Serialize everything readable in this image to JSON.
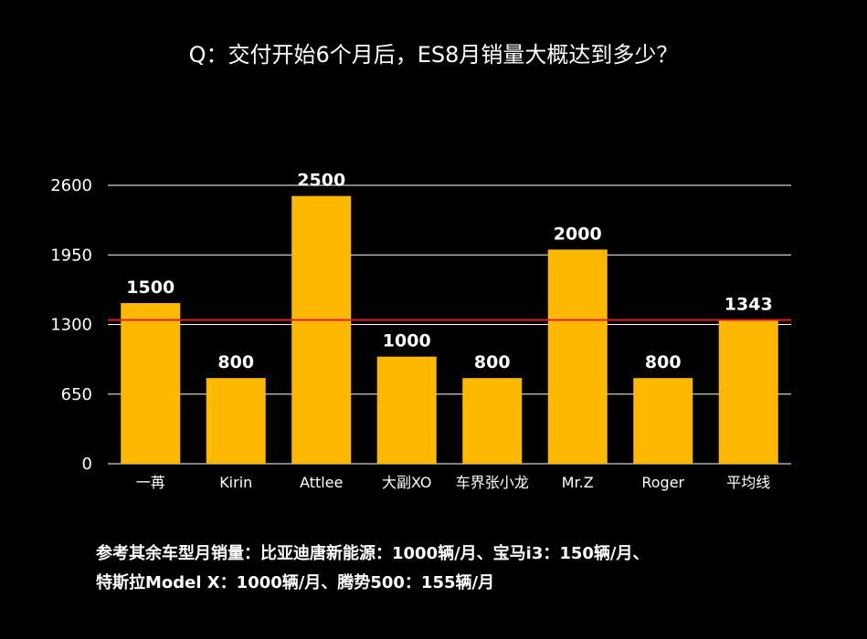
{
  "title": "Q：交付开始6个月后，ES8月销量大概达到多少？",
  "chart_data": {
    "type": "bar",
    "categories": [
      "一苒",
      "Kirin",
      "Attlee",
      "大副XO",
      "车界张小龙",
      "Mr.Z",
      "Roger",
      "平均线"
    ],
    "values": [
      1500,
      800,
      2500,
      1000,
      800,
      2000,
      800,
      1343
    ],
    "data_labels": [
      "1500",
      "800",
      "2500",
      "1000",
      "800",
      "2000",
      "800",
      "1343"
    ],
    "ylim": [
      0,
      2600
    ],
    "yticks": [
      0,
      650,
      1300,
      1950,
      2600
    ],
    "ytick_labels": [
      "0",
      "650",
      "1300",
      "1950",
      "2600"
    ],
    "grid": true,
    "reference_line": {
      "value": 1343,
      "color": "#e0201c"
    },
    "bar_color": "#ffb800",
    "background": "#000000",
    "grid_color": "#ffffff"
  },
  "notes": {
    "line1": "参考其余车型月销量：比亚迪唐新能源：1000辆/月、宝马i3：150辆/月、",
    "line2": "特斯拉Model X：1000辆/月、腾势500：155辆/月"
  }
}
